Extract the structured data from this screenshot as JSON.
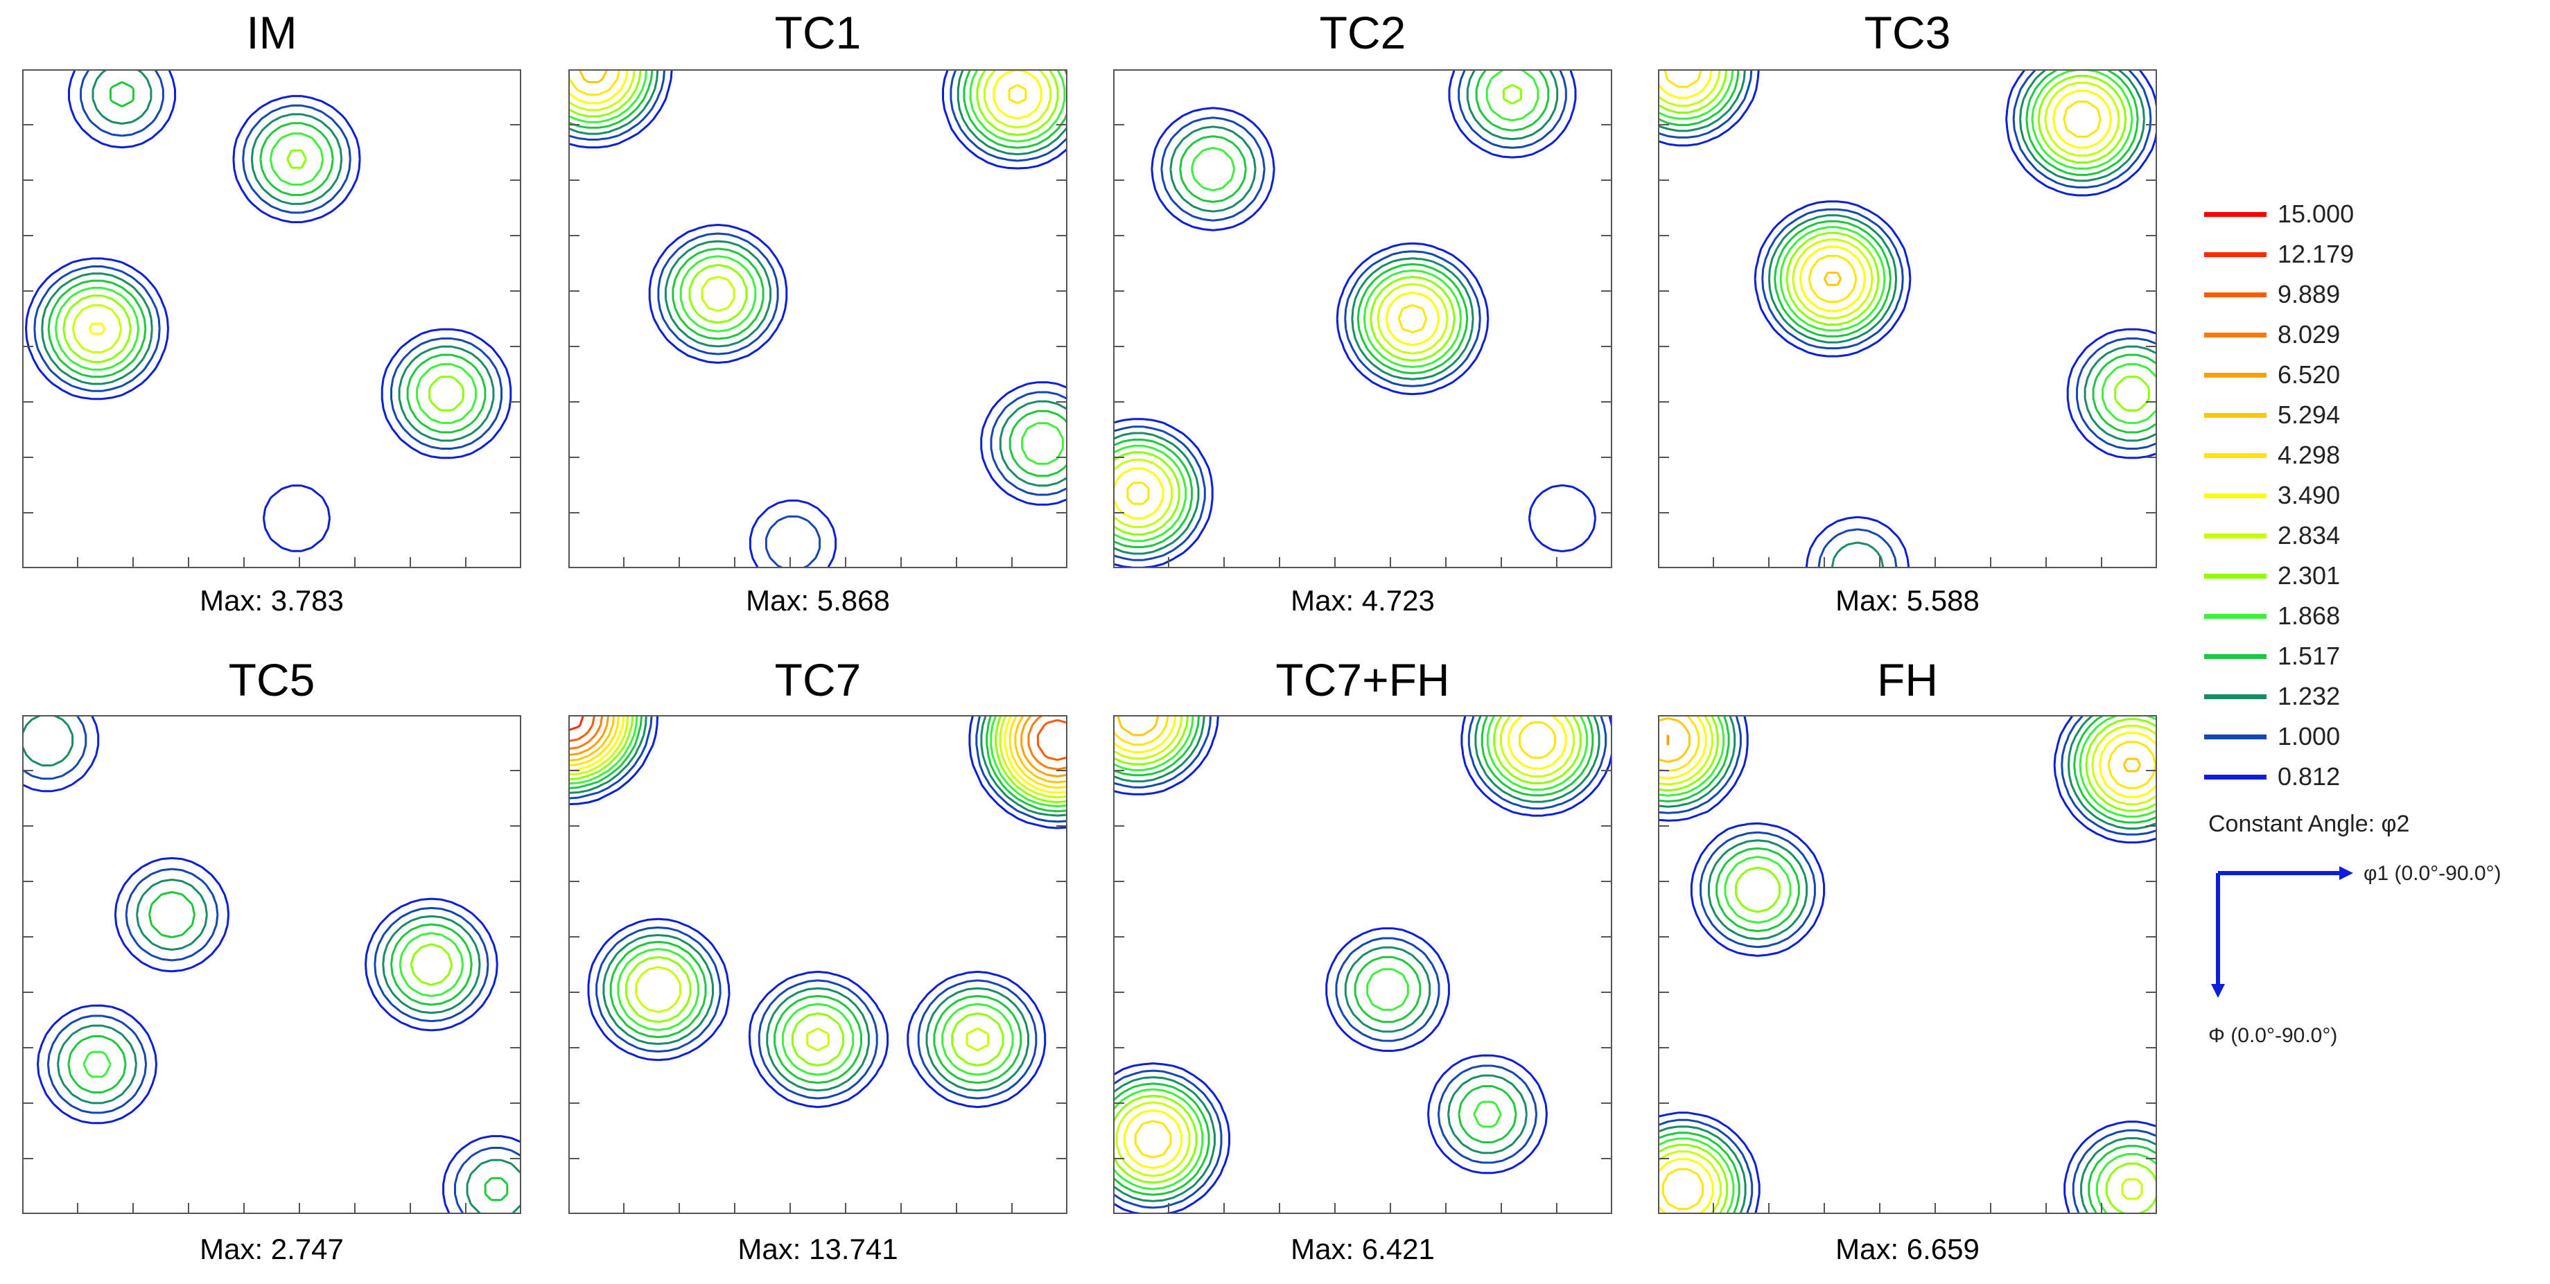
{
  "panels": [
    {
      "title": "IM",
      "max": "Max: 3.783"
    },
    {
      "title": "TC1",
      "max": "Max: 5.868"
    },
    {
      "title": "TC2",
      "max": "Max: 4.723"
    },
    {
      "title": "TC3",
      "max": "Max: 5.588"
    },
    {
      "title": "TC5",
      "max": "Max: 2.747"
    },
    {
      "title": "TC7",
      "max": "Max: 13.741"
    },
    {
      "title": "TC7+FH",
      "max": "Max: 6.421"
    },
    {
      "title": "FH",
      "max": "Max: 6.659"
    }
  ],
  "chart_data": {
    "type": "contour",
    "description_axes": {
      "x": "φ1 (0.0°-90.0°)",
      "y": "Φ (0.0°-90.0°)"
    },
    "constant_angle": "Constant Angle: φ2",
    "levels": [
      {
        "label": "15.000",
        "color": "#ff0000"
      },
      {
        "label": "12.179",
        "color": "#ff2a00"
      },
      {
        "label": "9.889",
        "color": "#ff5a00"
      },
      {
        "label": "8.029",
        "color": "#ff7a00"
      },
      {
        "label": "6.520",
        "color": "#ffa000"
      },
      {
        "label": "5.294",
        "color": "#ffc800"
      },
      {
        "label": "4.298",
        "color": "#ffe600"
      },
      {
        "label": "3.490",
        "color": "#ffff00"
      },
      {
        "label": "2.834",
        "color": "#c8ff00"
      },
      {
        "label": "2.301",
        "color": "#8cff00"
      },
      {
        "label": "1.868",
        "color": "#3cf03c"
      },
      {
        "label": "1.517",
        "color": "#1ec83c"
      },
      {
        "label": "1.232",
        "color": "#198c64"
      },
      {
        "label": "1.000",
        "color": "#1446b4"
      },
      {
        "label": "0.812",
        "color": "#0a1edc"
      }
    ],
    "panel_max_values": [
      3.783,
      5.868,
      4.723,
      5.588,
      2.747,
      13.741,
      6.421,
      6.659
    ],
    "peaks": [
      [
        [
          0.15,
          0.52,
          3.6
        ],
        [
          0.55,
          0.18,
          2.4
        ],
        [
          0.85,
          0.65,
          2.6
        ],
        [
          0.2,
          0.05,
          1.6
        ],
        [
          0.55,
          0.9,
          1.0
        ]
      ],
      [
        [
          0.3,
          0.45,
          3.2
        ],
        [
          0.05,
          0.0,
          5.8
        ],
        [
          0.9,
          0.05,
          4.5
        ],
        [
          0.95,
          0.75,
          2.2
        ],
        [
          0.45,
          0.95,
          1.2
        ]
      ],
      [
        [
          0.6,
          0.5,
          4.7
        ],
        [
          0.2,
          0.2,
          2.2
        ],
        [
          0.05,
          0.85,
          4.6
        ],
        [
          0.8,
          0.05,
          2.4
        ],
        [
          0.9,
          0.9,
          1.0
        ]
      ],
      [
        [
          0.35,
          0.42,
          5.5
        ],
        [
          0.05,
          0.0,
          5.0
        ],
        [
          0.85,
          0.1,
          5.0
        ],
        [
          0.95,
          0.65,
          2.6
        ],
        [
          0.4,
          1.0,
          1.5
        ]
      ],
      [
        [
          0.82,
          0.5,
          2.7
        ],
        [
          0.15,
          0.7,
          2.0
        ],
        [
          0.3,
          0.4,
          1.8
        ],
        [
          0.05,
          0.05,
          1.5
        ],
        [
          0.95,
          0.95,
          1.6
        ]
      ],
      [
        [
          0.18,
          0.55,
          3.5
        ],
        [
          0.5,
          0.65,
          3.0
        ],
        [
          0.82,
          0.65,
          3.0
        ],
        [
          0.0,
          0.0,
          13.7
        ],
        [
          0.98,
          0.05,
          12.0
        ]
      ],
      [
        [
          0.55,
          0.55,
          2.2
        ],
        [
          0.05,
          0.0,
          6.4
        ],
        [
          0.85,
          0.05,
          5.0
        ],
        [
          0.08,
          0.85,
          5.0
        ],
        [
          0.75,
          0.8,
          2.0
        ]
      ],
      [
        [
          0.2,
          0.35,
          2.8
        ],
        [
          0.02,
          0.05,
          6.6
        ],
        [
          0.95,
          0.1,
          5.5
        ],
        [
          0.05,
          0.95,
          5.2
        ],
        [
          0.95,
          0.95,
          3.0
        ]
      ]
    ]
  },
  "legend": {
    "constant_angle": "Constant Angle: φ2",
    "x_axis": "φ1 (0.0°-90.0°)",
    "y_axis": "Φ (0.0°-90.0°)"
  }
}
